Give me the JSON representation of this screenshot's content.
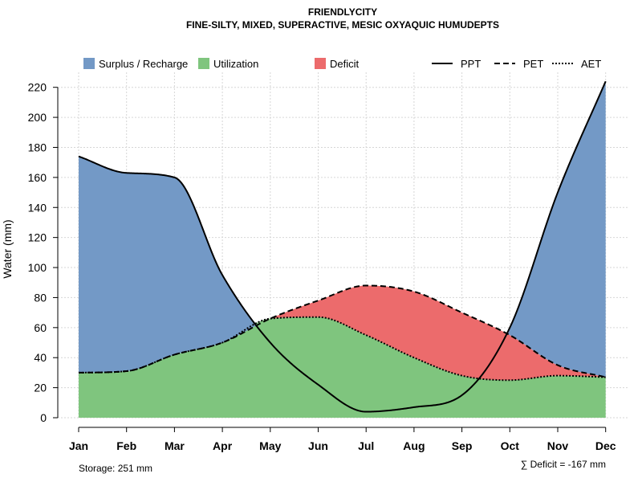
{
  "chart_data": {
    "type": "area",
    "title": "FRIENDLYCITY",
    "subtitle": "FINE-SILTY, MIXED, SUPERACTIVE, MESIC OXYAQUIC HUMUDEPTS",
    "xlabel": "",
    "ylabel": "Water (mm)",
    "ylim": [
      0,
      230
    ],
    "yticks": [
      0,
      20,
      40,
      60,
      80,
      100,
      120,
      140,
      160,
      180,
      200,
      220
    ],
    "categories": [
      "Jan",
      "Feb",
      "Mar",
      "Apr",
      "May",
      "Jun",
      "Jul",
      "Aug",
      "Sep",
      "Oct",
      "Nov",
      "Dec"
    ],
    "grid": true,
    "legend_position": "top",
    "series": [
      {
        "name": "PPT",
        "line_style": "solid",
        "values": [
          174,
          163,
          160,
          95,
          50,
          22,
          4,
          7,
          15,
          60,
          150,
          224
        ]
      },
      {
        "name": "PET",
        "line_style": "dashed",
        "values": [
          30,
          31,
          42,
          50,
          66,
          78,
          88,
          84,
          70,
          55,
          35,
          27
        ]
      },
      {
        "name": "AET",
        "line_style": "dotted",
        "values": [
          30,
          31,
          42,
          50,
          66,
          67,
          55,
          40,
          28,
          25,
          28,
          27
        ]
      }
    ],
    "regions": [
      {
        "name": "Surplus / Recharge",
        "color": "#7399C6"
      },
      {
        "name": "Utilization",
        "color": "#7FC57E"
      },
      {
        "name": "Deficit",
        "color": "#EC6B6C"
      }
    ],
    "annotations": {
      "storage": "Storage: 251 mm",
      "deficit": "∑ Deficit = -167 mm"
    }
  }
}
